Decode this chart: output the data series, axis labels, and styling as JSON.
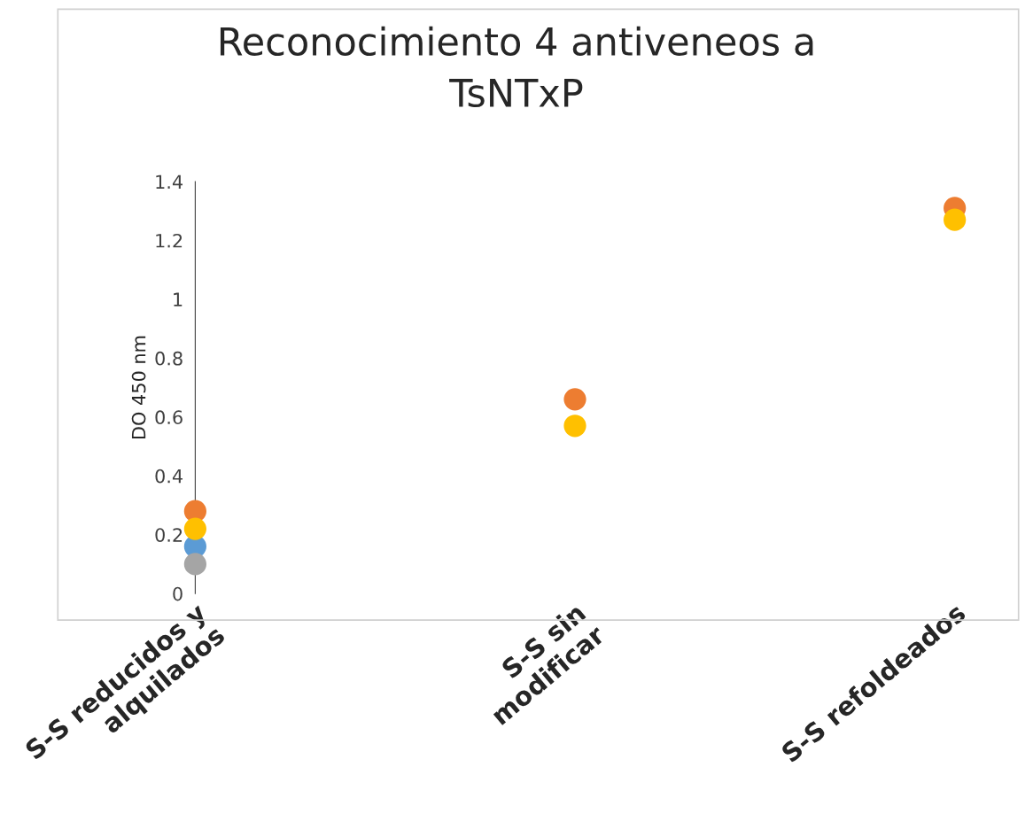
{
  "chart_data": {
    "type": "scatter",
    "title": "Reconocimiento 4 antiveneos a\nTsNTxP",
    "ylabel": "DO 450 nm",
    "categories": [
      "S-S reducidos y\nalquilados",
      "S-S sin\nmodificar",
      "S-S refoldeados"
    ],
    "series": [
      {
        "color": "#5b9bd5",
        "values": [
          0.16,
          null,
          null
        ]
      },
      {
        "color": "#ed7d31",
        "values": [
          0.28,
          0.66,
          1.31
        ]
      },
      {
        "color": "#a5a5a5",
        "values": [
          0.1,
          null,
          null
        ]
      },
      {
        "color": "#ffc000",
        "values": [
          0.22,
          0.57,
          1.27
        ]
      }
    ],
    "ylim": [
      0,
      1.4
    ],
    "yticks": [
      0,
      0.2,
      0.4,
      0.6,
      0.8,
      {
        "value": 1,
        "label": "1"
      },
      1.2,
      1.4
    ],
    "marker": "circle",
    "grid": false,
    "legend": false
  }
}
